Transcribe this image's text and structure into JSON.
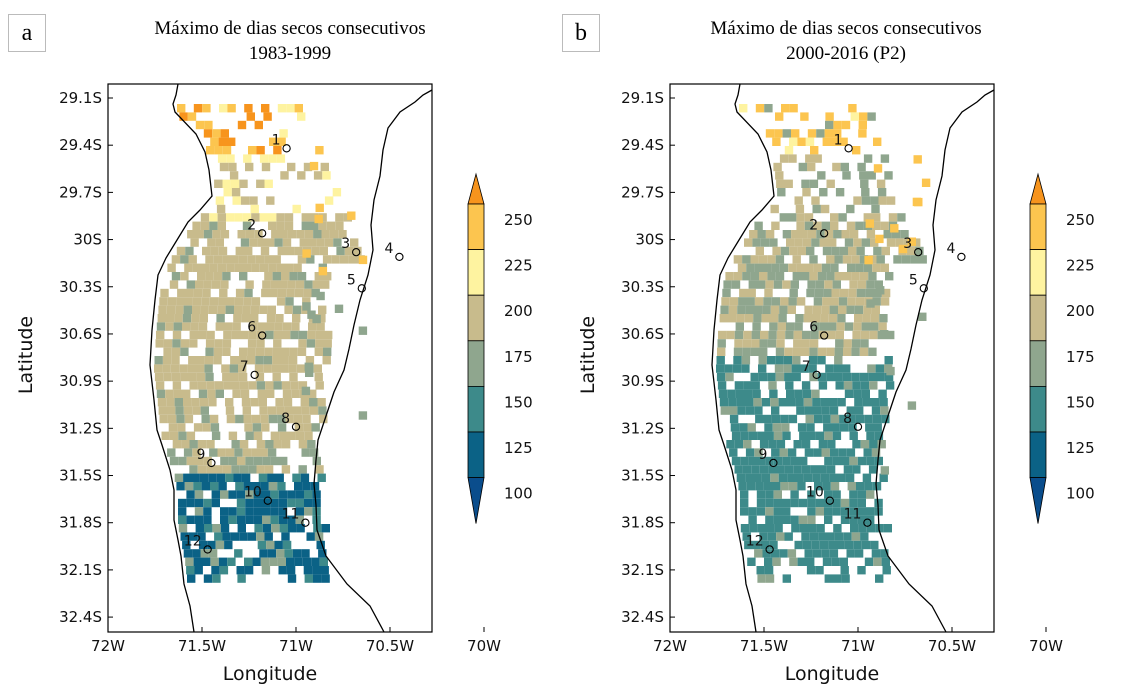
{
  "panels": [
    {
      "letter": "a",
      "title_line1": "Máximo de dias secos consecutivos",
      "title_line2": "1983-1999",
      "southern_index": 5
    },
    {
      "letter": "b",
      "title_line1": "Máximo de dias secos consecutivos",
      "title_line2": "2000-2016 (P2)",
      "southern_index": 2
    }
  ],
  "axes": {
    "xlabel": "Longitude",
    "ylabel": "Latitude",
    "x_ticks": [
      "72W",
      "71.5W",
      "71W",
      "70.5W",
      "70W"
    ],
    "y_ticks": [
      "29.1S",
      "29.4S",
      "29.7S",
      "30S",
      "30.3S",
      "30.6S",
      "30.9S",
      "31.2S",
      "31.5S",
      "31.8S",
      "32.1S",
      "32.4S"
    ]
  },
  "colorbar": {
    "labels": [
      "250",
      "225",
      "200",
      "175",
      "150",
      "125",
      "100"
    ],
    "colors": [
      "#f7941d",
      "#fcc54f",
      "#fef3a0",
      "#c8bb8c",
      "#8fa68e",
      "#3d8a8a",
      "#0b6286",
      "#0a4d8c"
    ]
  },
  "stations": [
    {
      "label": "1",
      "lon": -71.05,
      "lat": -29.42
    },
    {
      "label": "2",
      "lon": -71.18,
      "lat": -29.96
    },
    {
      "label": "3",
      "lon": -70.68,
      "lat": -30.08
    },
    {
      "label": "4",
      "lon": -70.45,
      "lat": -30.11
    },
    {
      "label": "5",
      "lon": -70.65,
      "lat": -30.31
    },
    {
      "label": "6",
      "lon": -71.18,
      "lat": -30.61
    },
    {
      "label": "7",
      "lon": -71.22,
      "lat": -30.86
    },
    {
      "label": "8",
      "lon": -71.0,
      "lat": -31.19
    },
    {
      "label": "9",
      "lon": -71.45,
      "lat": -31.42
    },
    {
      "label": "10",
      "lon": -71.15,
      "lat": -31.66
    },
    {
      "label": "11",
      "lon": -70.95,
      "lat": -31.8
    },
    {
      "label": "12",
      "lon": -71.47,
      "lat": -31.97
    }
  ]
}
